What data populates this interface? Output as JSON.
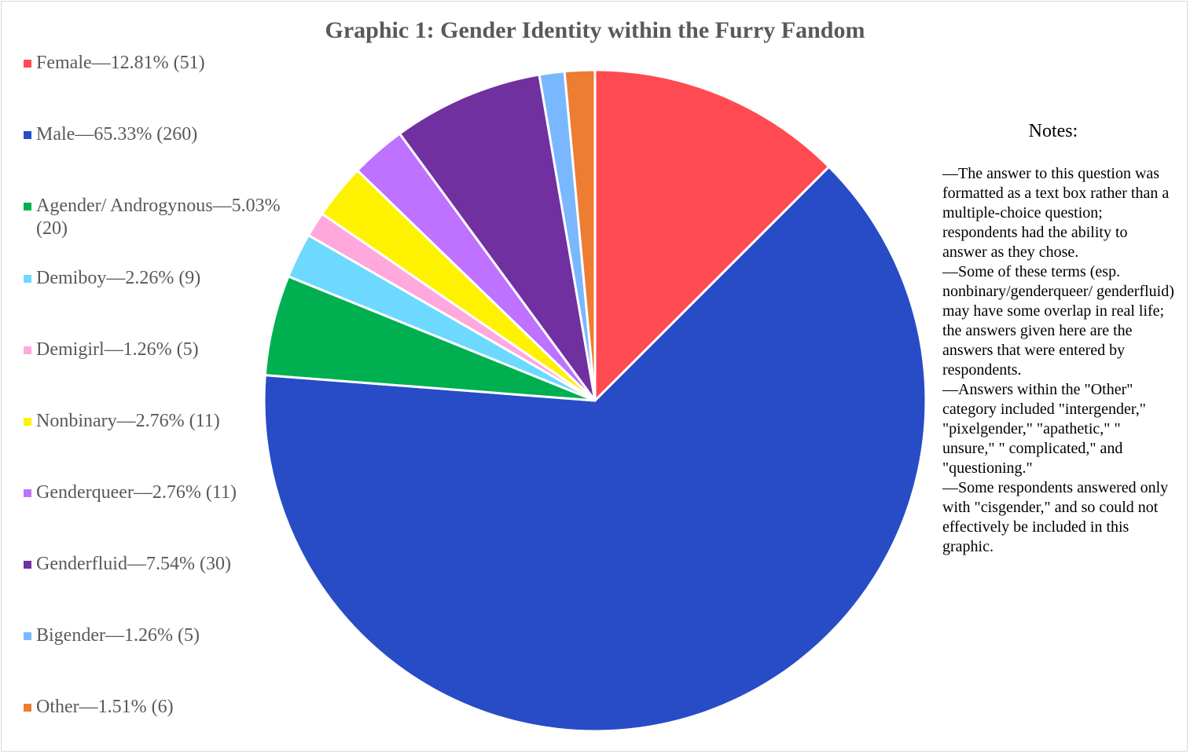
{
  "chart_data": {
    "type": "pie",
    "title": "Graphic 1: Gender Identity within the Furry Fandom",
    "slices": [
      {
        "label": "Female—12.81% (51)",
        "name": "Female",
        "percent": 12.81,
        "count": 51,
        "color": "#ff4a52"
      },
      {
        "label": "Male—65.33% (260)",
        "name": "Male",
        "percent": 65.33,
        "count": 260,
        "color": "#284cc6"
      },
      {
        "label": "Agender/ Androgynous—5.03% (20)",
        "name": "Agender/ Androgynous",
        "percent": 5.03,
        "count": 20,
        "color": "#00b050"
      },
      {
        "label": "Demiboy—2.26% (9)",
        "name": "Demiboy",
        "percent": 2.26,
        "count": 9,
        "color": "#6dd9ff"
      },
      {
        "label": "Demigirl—1.26% (5)",
        "name": "Demigirl",
        "percent": 1.26,
        "count": 5,
        "color": "#ffa8de"
      },
      {
        "label": "Nonbinary—2.76% (11)",
        "name": "Nonbinary",
        "percent": 2.76,
        "count": 11,
        "color": "#fff200"
      },
      {
        "label": "Genderqueer—2.76% (11)",
        "name": "Genderqueer",
        "percent": 2.76,
        "count": 11,
        "color": "#bf71ff"
      },
      {
        "label": "Genderfluid—7.54% (30)",
        "name": "Genderfluid",
        "percent": 7.54,
        "count": 30,
        "color": "#7030a0"
      },
      {
        "label": "Bigender—1.26% (5)",
        "name": "Bigender",
        "percent": 1.26,
        "count": 5,
        "color": "#79b8ff"
      },
      {
        "label": "Other—1.51% (6)",
        "name": "Other",
        "percent": 1.51,
        "count": 6,
        "color": "#ed7d31"
      }
    ],
    "legend_position": "left"
  },
  "notes": {
    "title": "Notes:",
    "items": [
      "—The answer to this question was formatted as a text box rather than a multiple-choice question; respondents had the ability to answer as they chose.",
      "—Some of these terms (esp. nonbinary/genderqueer/ genderfluid) may have some overlap in real life; the answers given here are the answers that were entered by respondents.",
      "—Answers within the \"Other\" category included \"intergender,\" \"pixelgender,\" \"apathetic,\" \" unsure,\" \" complicated,\" and \"questioning.\"",
      "—Some respondents answered only with \"cisgender,\" and so could not effectively be included in this graphic."
    ]
  }
}
